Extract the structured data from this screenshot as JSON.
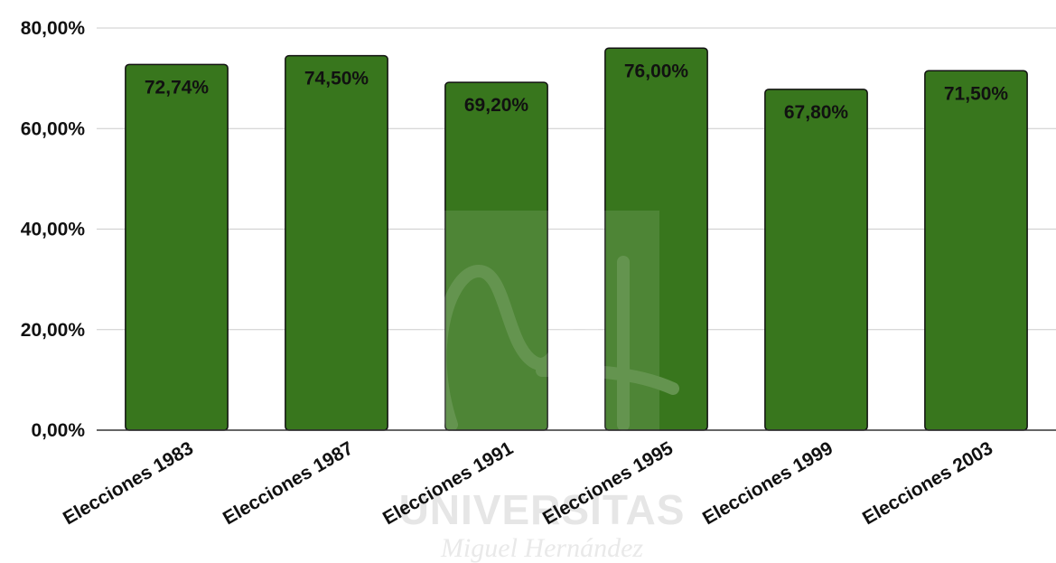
{
  "chart_data": {
    "type": "bar",
    "categories": [
      "Elecciones 1983",
      "Elecciones 1987",
      "Elecciones 1991",
      "Elecciones 1995",
      "Elecciones 1999",
      "Elecciones 2003"
    ],
    "values": [
      72.74,
      74.5,
      69.2,
      76.0,
      67.8,
      71.5
    ],
    "value_labels": [
      "72,74%",
      "74,50%",
      "69,20%",
      "76,00%",
      "67,80%",
      "71,50%"
    ],
    "ylim": [
      0,
      80
    ],
    "y_ticks": [
      0,
      20,
      40,
      60,
      80
    ],
    "y_tick_labels": [
      "0,00%",
      "20,00%",
      "40,00%",
      "60,00%",
      "80,00%"
    ],
    "grid": true,
    "bar_color": "#38761d",
    "title": "",
    "xlabel": "",
    "ylabel": ""
  },
  "watermark": {
    "line1": "UNIVERSITAS",
    "line2": "Miguel Hernández"
  }
}
